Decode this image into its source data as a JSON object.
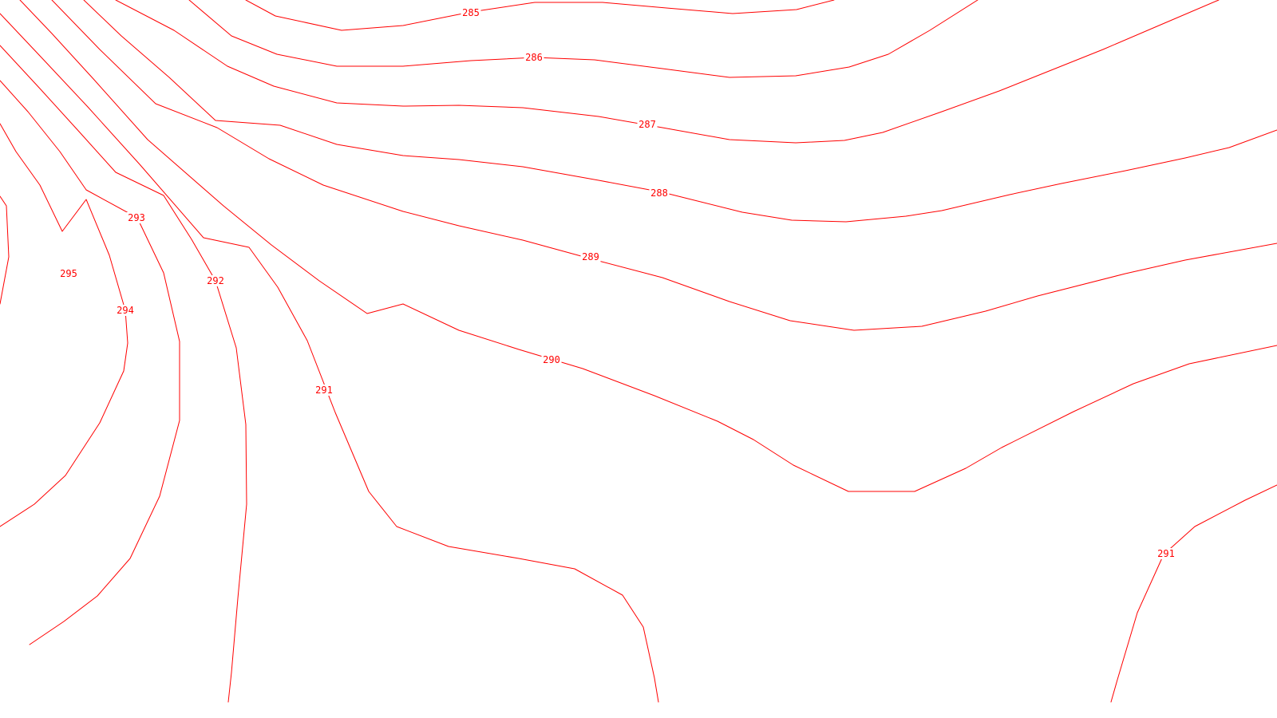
{
  "map": {
    "type": "contour",
    "line_color": "#ff0000",
    "background": "#ffffff",
    "contour_levels": [
      285,
      286,
      287,
      288,
      289,
      290,
      291,
      292,
      293,
      294,
      295
    ],
    "labels": [
      {
        "id": "285",
        "text": "285"
      },
      {
        "id": "286",
        "text": "286"
      },
      {
        "id": "287",
        "text": "287"
      },
      {
        "id": "288",
        "text": "288"
      },
      {
        "id": "289",
        "text": "289"
      },
      {
        "id": "290",
        "text": "290"
      },
      {
        "id": "291a",
        "text": "291"
      },
      {
        "id": "291b",
        "text": "291"
      },
      {
        "id": "292",
        "text": "292"
      },
      {
        "id": "293",
        "text": "293"
      },
      {
        "id": "294",
        "text": "294"
      },
      {
        "id": "295",
        "text": "295"
      }
    ]
  }
}
